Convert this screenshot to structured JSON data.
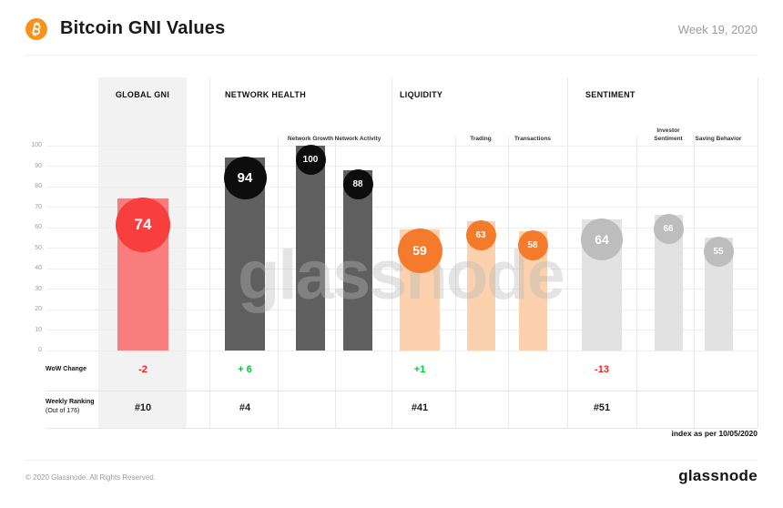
{
  "header": {
    "title": "Bitcoin GNI Values",
    "week_label": "Week 19, 2020"
  },
  "chart_data": {
    "type": "bar",
    "title": "Bitcoin GNI Values",
    "ylim": [
      0,
      100
    ],
    "yticks": [
      100,
      90,
      80,
      70,
      60,
      50,
      40,
      30,
      20,
      10,
      0
    ],
    "grid": true,
    "watermark": "glassnode",
    "sections": [
      {
        "label": "GLOBAL GNI",
        "highlighted": true,
        "circle_color": "#F93E3E",
        "bar_color": "#FA7D7D",
        "wow_change": "-2",
        "wow_direction": "down",
        "weekly_ranking": "#10",
        "bars": [
          {
            "sublabel": "",
            "value": 74
          }
        ]
      },
      {
        "label": "NETWORK HEALTH",
        "highlighted": false,
        "circle_color": "#0D0D0D",
        "bar_color": "#5F5F5F",
        "wow_change": "+ 6",
        "wow_direction": "up",
        "weekly_ranking": "#4",
        "bars": [
          {
            "sublabel": "",
            "value": 94
          },
          {
            "sublabel": "Network Growth",
            "value": 100
          },
          {
            "sublabel": "Network Activity",
            "value": 88
          }
        ]
      },
      {
        "label": "LIQUIDITY",
        "highlighted": false,
        "circle_color": "#F47B2C",
        "bar_color": "#FBD2AD",
        "wow_change": "+1",
        "wow_direction": "up",
        "weekly_ranking": "#41",
        "bars": [
          {
            "sublabel": "",
            "value": 59
          },
          {
            "sublabel": "Trading",
            "value": 63
          },
          {
            "sublabel": "Transactions",
            "value": 58
          }
        ]
      },
      {
        "label": "SENTIMENT",
        "highlighted": false,
        "circle_color": "#BDBDBD",
        "bar_color": "#E2E2E2",
        "wow_change": "-13",
        "wow_direction": "down",
        "weekly_ranking": "#51",
        "bars": [
          {
            "sublabel": "",
            "value": 64
          },
          {
            "sublabel": "Investor Sentiment",
            "value": 66
          },
          {
            "sublabel": "Saving Behavior",
            "value": 55
          }
        ]
      }
    ],
    "wow_colors": {
      "up": "#00C93C",
      "down": "#FF1D1D"
    },
    "footnote": "index as per 10/05/2020"
  },
  "rows": {
    "wow_label": "WoW  Change",
    "ranking_label": "Weekly Ranking",
    "ranking_sublabel": "(Out of 176)"
  },
  "footer": {
    "copyright": "© 2020 Glassnode. All Rights Reserved.",
    "brand": "glassnode"
  },
  "colors": {
    "accent_orange": "#F7931A",
    "grid": "#EDEDED",
    "panel": "#F2F2F2"
  }
}
